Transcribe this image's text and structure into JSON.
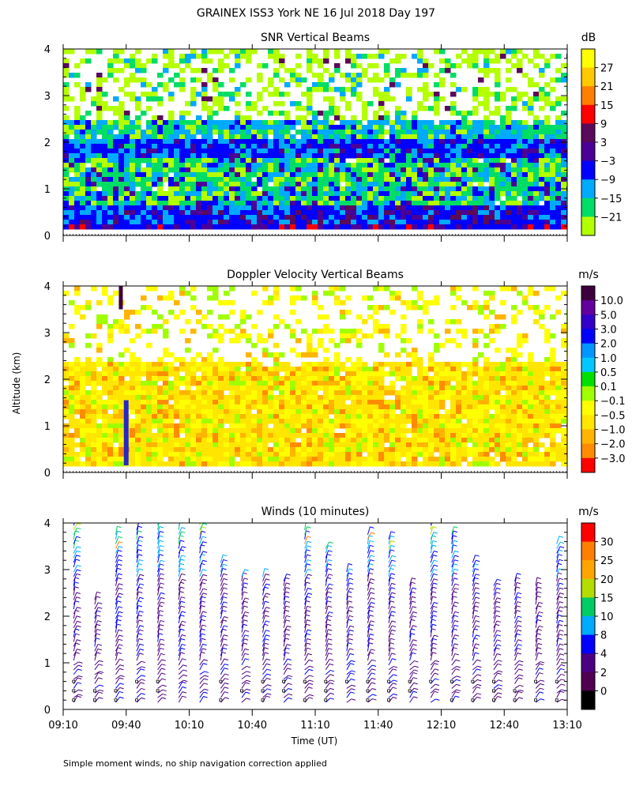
{
  "title": "GRAINEX ISS3 York NE  16 Jul 2018 Day 197",
  "ylabel": "Altitude (km)",
  "xlabel": "Time (UT)",
  "footnote": "Simple moment winds, no ship navigation correction applied",
  "chart_data": [
    {
      "type": "heatmap",
      "title": "SNR Vertical Beams",
      "unit": "dB",
      "x_ticks": [
        "09:10",
        "09:40",
        "10:10",
        "10:40",
        "11:10",
        "11:40",
        "12:10",
        "12:40",
        "13:10"
      ],
      "ylim": [
        0,
        4
      ],
      "y_ticks": [
        "0",
        "1",
        "2",
        "3",
        "4"
      ],
      "colorbar": {
        "labels": [
          "27",
          "21",
          "15",
          "9",
          "3",
          "−3",
          "−9",
          "−15",
          "−21"
        ],
        "colors": [
          "#ffff00",
          "#ffc800",
          "#ff7f00",
          "#ff0000",
          "#5a0a5a",
          "#4b0096",
          "#0000ff",
          "#00aaff",
          "#00dd66",
          "#b4ff00"
        ]
      }
    },
    {
      "type": "heatmap",
      "title": "Doppler Velocity Vertical Beams",
      "unit": "m/s",
      "x_ticks": [
        "09:10",
        "09:40",
        "10:10",
        "10:40",
        "11:10",
        "11:40",
        "12:10",
        "12:40",
        "13:10"
      ],
      "ylim": [
        0,
        4
      ],
      "y_ticks": [
        "0",
        "1",
        "2",
        "3",
        "4"
      ],
      "colorbar": {
        "labels": [
          "10.0",
          "5.0",
          "3.0",
          "2.0",
          "1.0",
          "0.5",
          "0.1",
          "−0.1",
          "−0.5",
          "−1.0",
          "−2.0",
          "−3.0"
        ],
        "colors": [
          "#3c003c",
          "#64009b",
          "#3200c8",
          "#0000ff",
          "#0096ff",
          "#00c8ff",
          "#00e000",
          "#a0ff00",
          "#ffff00",
          "#ffe600",
          "#ffb400",
          "#ff8c00",
          "#ff0000"
        ]
      }
    },
    {
      "type": "scatter",
      "title": "Winds (10 minutes)",
      "unit": "m/s",
      "x_ticks": [
        "09:10",
        "09:40",
        "10:10",
        "10:40",
        "11:10",
        "11:40",
        "12:10",
        "12:40",
        "13:10"
      ],
      "ylim": [
        0,
        4
      ],
      "y_ticks": [
        "0",
        "1",
        "2",
        "3",
        "4"
      ],
      "colorbar": {
        "labels": [
          "30",
          "25",
          "20",
          "15",
          "10",
          "8",
          "4",
          "2",
          "0"
        ],
        "colors": [
          "#ff0000",
          "#ff7f00",
          "#ffa500",
          "#b4dc00",
          "#00cc66",
          "#00aaff",
          "#0000ff",
          "#4b0082",
          "#500050",
          "#000000"
        ]
      },
      "series": [
        {
          "time": "09:15",
          "top_km": 4.0
        },
        {
          "time": "09:25",
          "top_km": 2.4
        },
        {
          "time": "09:35",
          "top_km": 3.8
        },
        {
          "time": "09:45",
          "top_km": 4.2
        },
        {
          "time": "09:55",
          "top_km": 4.2
        },
        {
          "time": "10:05",
          "top_km": 4.1
        },
        {
          "time": "10:15",
          "top_km": 4.1
        },
        {
          "time": "10:25",
          "top_km": 3.2
        },
        {
          "time": "10:35",
          "top_km": 2.9
        },
        {
          "time": "10:45",
          "top_km": 2.9
        },
        {
          "time": "10:55",
          "top_km": 2.8
        },
        {
          "time": "11:05",
          "top_km": 3.9
        },
        {
          "time": "11:15",
          "top_km": 3.5
        },
        {
          "time": "11:25",
          "top_km": 3.0
        },
        {
          "time": "11:35",
          "top_km": 3.8
        },
        {
          "time": "11:45",
          "top_km": 3.7
        },
        {
          "time": "11:55",
          "top_km": 2.7
        },
        {
          "time": "12:05",
          "top_km": 4.0
        },
        {
          "time": "12:15",
          "top_km": 3.8
        },
        {
          "time": "12:25",
          "top_km": 3.2
        },
        {
          "time": "12:35",
          "top_km": 2.7
        },
        {
          "time": "12:45",
          "top_km": 2.8
        },
        {
          "time": "12:55",
          "top_km": 2.7
        },
        {
          "time": "13:05",
          "top_km": 3.6
        }
      ]
    }
  ]
}
